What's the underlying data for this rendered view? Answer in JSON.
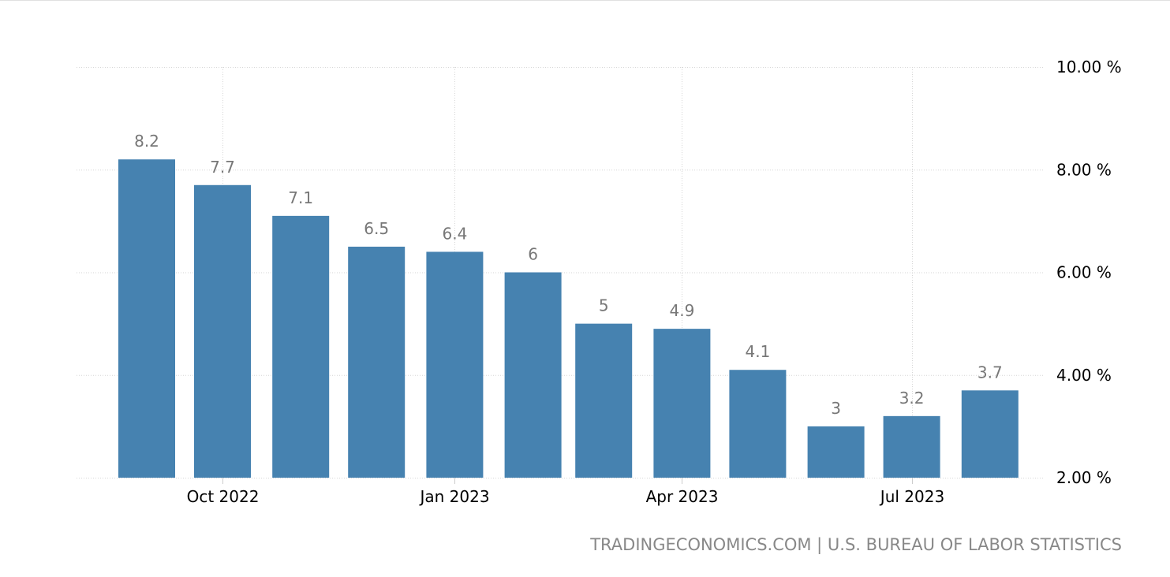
{
  "chart_data": {
    "type": "bar",
    "title": "",
    "xlabel": "",
    "ylabel": "",
    "categories": [
      "2022-09",
      "2022-10",
      "2022-11",
      "2022-12",
      "2023-01",
      "2023-02",
      "2023-03",
      "2023-04",
      "2023-05",
      "2023-06",
      "2023-07",
      "2023-08"
    ],
    "values": [
      8.2,
      7.7,
      7.1,
      6.5,
      6.4,
      6,
      5,
      4.9,
      4.1,
      3,
      3.2,
      3.7
    ],
    "data_labels": [
      "8.2",
      "7.7",
      "7.1",
      "6.5",
      "6.4",
      "6",
      "5",
      "4.9",
      "4.1",
      "3",
      "3.2",
      "3.7"
    ],
    "ylim": [
      2,
      10
    ],
    "y_ticks": [
      2,
      4,
      6,
      8,
      10
    ],
    "y_tick_labels": [
      "2.00 %",
      "4.00 %",
      "6.00 %",
      "8.00 %",
      "10.00 %"
    ],
    "y_axis_position": "right",
    "x_ticks": [
      "2022-10",
      "2023-01",
      "2023-04",
      "2023-07"
    ],
    "x_tick_labels": [
      "Oct 2022",
      "Jan 2023",
      "Apr 2023",
      "Jul 2023"
    ],
    "grid": true,
    "bar_color": "#4682b0",
    "label_color": "#777777"
  },
  "source": "TRADINGECONOMICS.COM | U.S. BUREAU OF LABOR STATISTICS"
}
